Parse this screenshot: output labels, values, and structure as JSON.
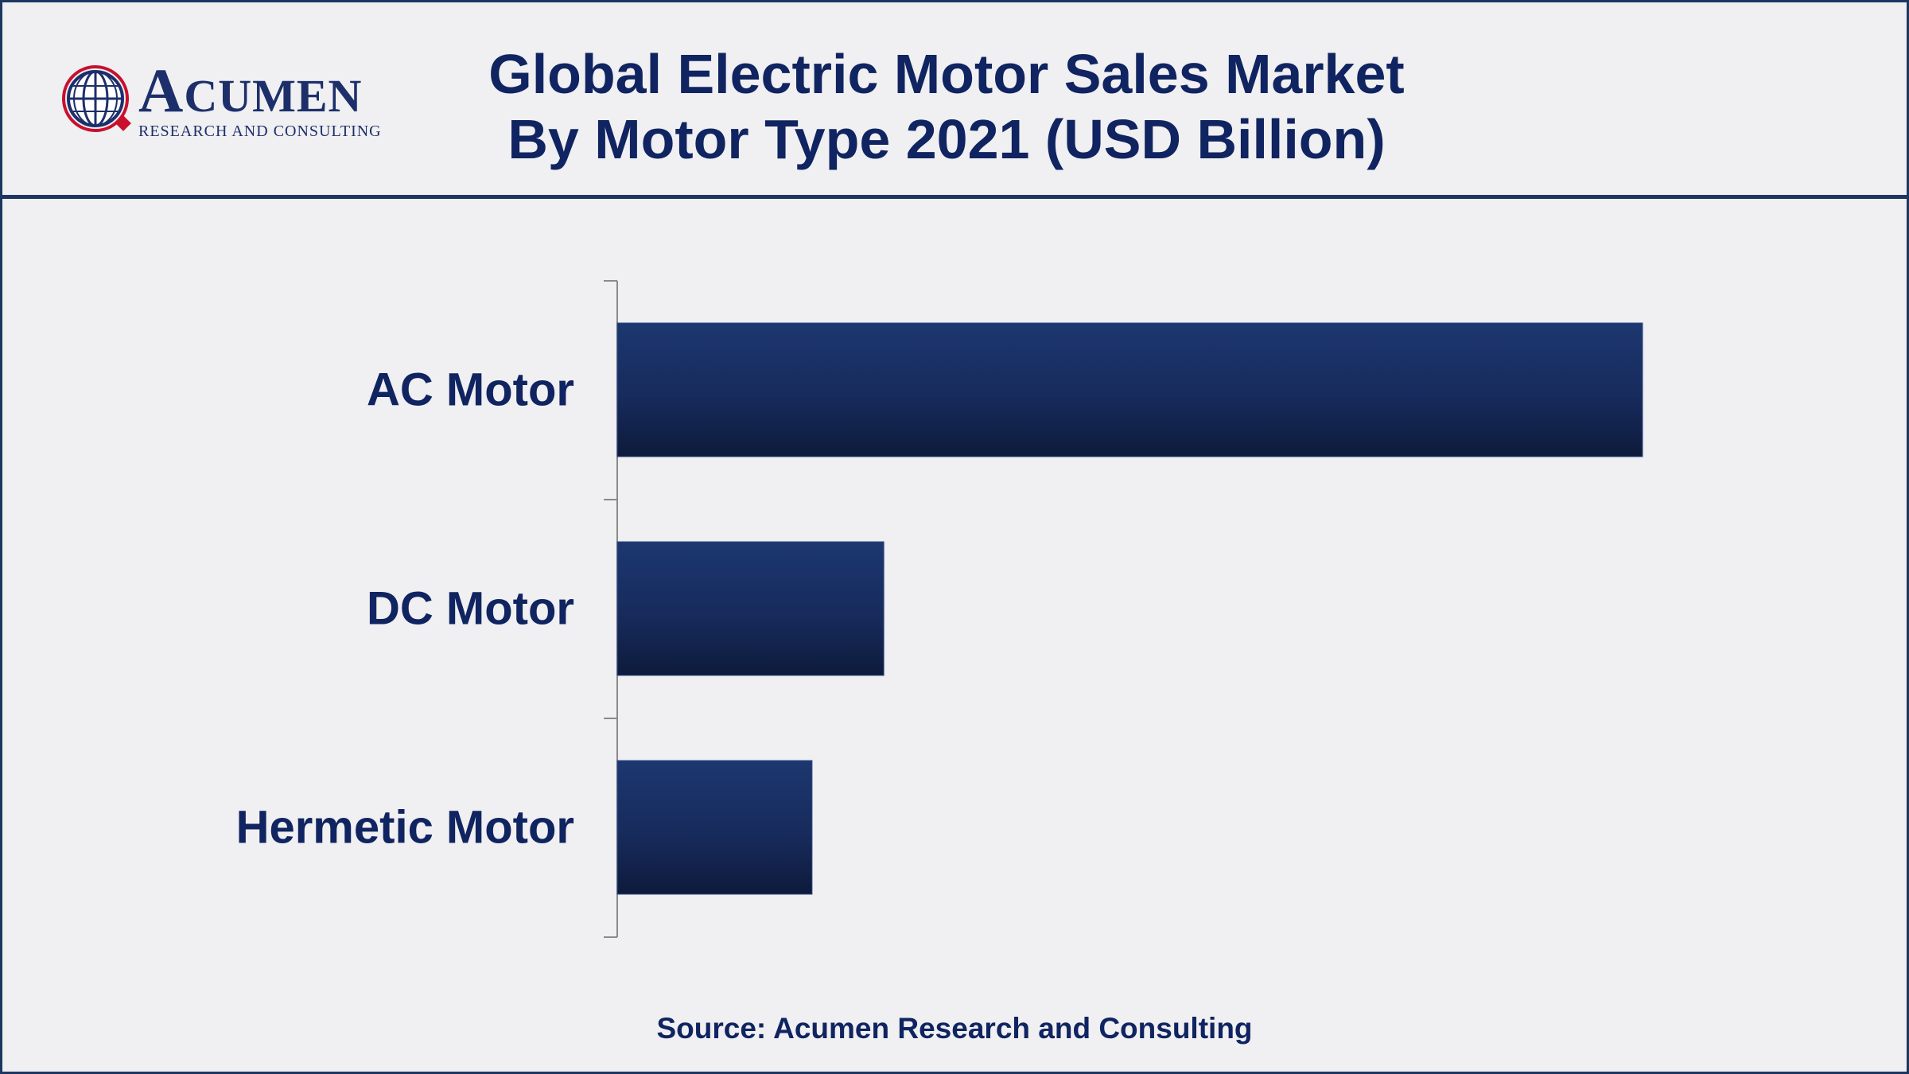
{
  "header": {
    "logo_main": "ACUMEN",
    "logo_sub": "RESEARCH AND CONSULTING",
    "title_line1": "Global Electric Motor Sales Market",
    "title_line2": "By Motor Type 2021 (USD Billion)"
  },
  "chart_data": {
    "type": "bar",
    "orientation": "horizontal",
    "title": "Global Electric Motor Sales Market By Motor Type 2021 (USD Billion)",
    "categories": [
      "AC Motor",
      "DC Motor",
      "Hermetic Motor"
    ],
    "values": [
      100,
      26,
      19
    ],
    "xlim": [
      0,
      100
    ],
    "grid": false,
    "legend": "none",
    "bar_color": "#1c3466"
  },
  "footer": {
    "source": "Source: Acumen Research and Consulting"
  }
}
